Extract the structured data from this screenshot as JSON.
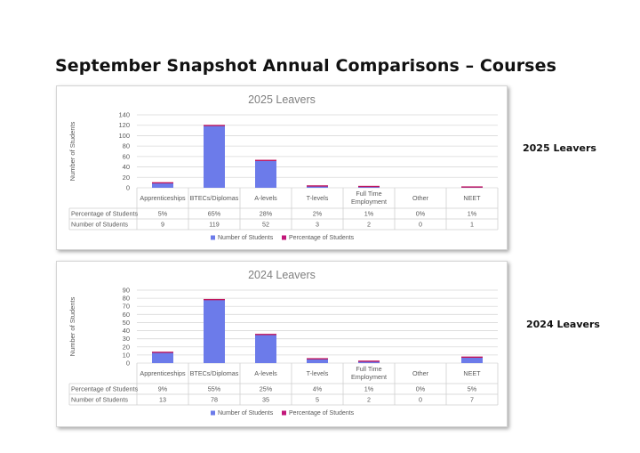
{
  "page": {
    "title": "September Snapshot Annual Comparisons – Courses"
  },
  "side_labels": {
    "top": "2025 Leavers",
    "bottom": "2024 Leavers"
  },
  "colors": {
    "bar": "#6c7bea",
    "bar_top": "#c0145c",
    "percentage_legend": "#c2177a",
    "grid": "#d9d9d9"
  },
  "chart_data": [
    {
      "type": "bar",
      "title": "2025 Leavers",
      "ylabel": "Number of Students",
      "xlabel": "",
      "ylim": [
        0,
        140
      ],
      "yticks": [
        "140",
        "120",
        "100",
        "80",
        "60",
        "40",
        "20",
        "0"
      ],
      "categories": [
        "Apprenticeships",
        "BTECs/Diplomas",
        "A-levels",
        "T-levels",
        "Full Time Employment",
        "Other",
        "NEET"
      ],
      "series": [
        {
          "name": "Number of Students",
          "values": [
            9,
            119,
            52,
            3,
            2,
            0,
            1
          ]
        },
        {
          "name": "Percentage of Students",
          "values": [
            "5%",
            "65%",
            "28%",
            "2%",
            "1%",
            "0%",
            "1%"
          ]
        }
      ],
      "legend": "bottom",
      "grid": true
    },
    {
      "type": "bar",
      "title": "2024 Leavers",
      "ylabel": "Number of Students",
      "xlabel": "",
      "ylim": [
        0,
        90
      ],
      "yticks": [
        "90",
        "80",
        "70",
        "60",
        "50",
        "40",
        "30",
        "20",
        "10",
        "0"
      ],
      "categories": [
        "Apprenticeships",
        "BTECs/Diplomas",
        "A-levels",
        "T-levels",
        "Full Time Employment",
        "Other",
        "NEET"
      ],
      "series": [
        {
          "name": "Number of Students",
          "values": [
            13,
            78,
            35,
            5,
            2,
            0,
            7
          ]
        },
        {
          "name": "Percentage of Students",
          "values": [
            "9%",
            "55%",
            "25%",
            "4%",
            "1%",
            "0%",
            "5%"
          ]
        }
      ],
      "legend": "bottom",
      "grid": true
    }
  ]
}
